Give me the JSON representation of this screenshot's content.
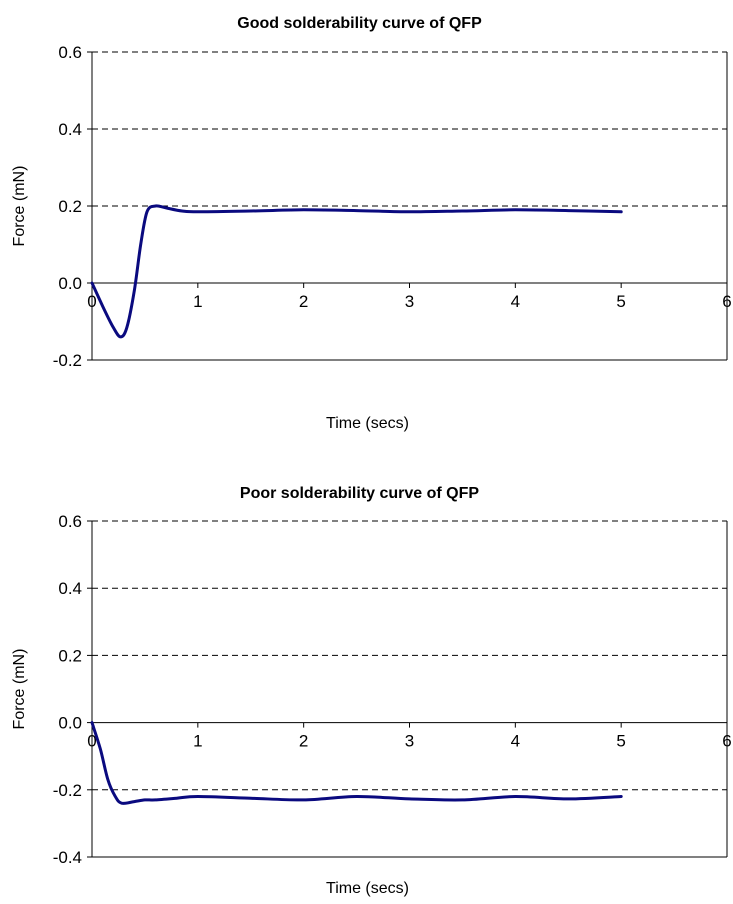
{
  "colors": {
    "series": "#0A0A7F"
  },
  "chart_data": [
    {
      "type": "line",
      "title": "Good solderability curve of QFP",
      "xlabel": "Time (secs)",
      "ylabel": "Force (mN)",
      "xlim": [
        0,
        6
      ],
      "ylim": [
        -0.2,
        0.6
      ],
      "xticks": [
        0,
        1,
        2,
        3,
        4,
        5,
        6
      ],
      "xtick_labels": [
        "0",
        "1",
        "2",
        "3",
        "4",
        "5",
        "6"
      ],
      "yticks": [
        -0.2,
        0.0,
        0.2,
        0.4,
        0.6
      ],
      "ytick_labels": [
        "-0.2",
        "0.0",
        "0.2",
        "0.4",
        "0.6"
      ],
      "grid": "horizontal dashed",
      "series": [
        {
          "x": [
            0,
            0.1,
            0.2,
            0.27,
            0.33,
            0.4,
            0.46,
            0.52,
            0.6,
            0.7,
            0.85,
            1.0,
            1.5,
            2.0,
            2.5,
            3.0,
            3.5,
            4.0,
            4.5,
            5.0
          ],
          "y": [
            0.0,
            -0.06,
            -0.115,
            -0.14,
            -0.115,
            -0.02,
            0.1,
            0.185,
            0.2,
            0.195,
            0.187,
            0.185,
            0.187,
            0.19,
            0.188,
            0.185,
            0.187,
            0.19,
            0.188,
            0.185
          ]
        }
      ]
    },
    {
      "type": "line",
      "title": "Poor solderability curve of QFP",
      "xlabel": "Time (secs)",
      "ylabel": "Force (mN)",
      "xlim": [
        0,
        6
      ],
      "ylim": [
        -0.4,
        0.6
      ],
      "xticks": [
        0,
        1,
        2,
        3,
        4,
        5,
        6
      ],
      "xtick_labels": [
        "0",
        "1",
        "2",
        "3",
        "4",
        "5",
        "6"
      ],
      "yticks": [
        -0.4,
        -0.2,
        0.0,
        0.2,
        0.4,
        0.6
      ],
      "ytick_labels": [
        "-0.4",
        "-0.2",
        "0.0",
        "0.2",
        "0.4",
        "0.6"
      ],
      "grid": "horizontal dashed",
      "series": [
        {
          "x": [
            0,
            0.08,
            0.15,
            0.22,
            0.28,
            0.4,
            0.5,
            0.6,
            0.8,
            1.0,
            1.5,
            2.0,
            2.5,
            3.0,
            3.5,
            4.0,
            4.5,
            5.0
          ],
          "y": [
            0.0,
            -0.08,
            -0.17,
            -0.22,
            -0.24,
            -0.235,
            -0.23,
            -0.23,
            -0.225,
            -0.22,
            -0.225,
            -0.23,
            -0.22,
            -0.227,
            -0.23,
            -0.22,
            -0.227,
            -0.22
          ]
        }
      ]
    }
  ]
}
